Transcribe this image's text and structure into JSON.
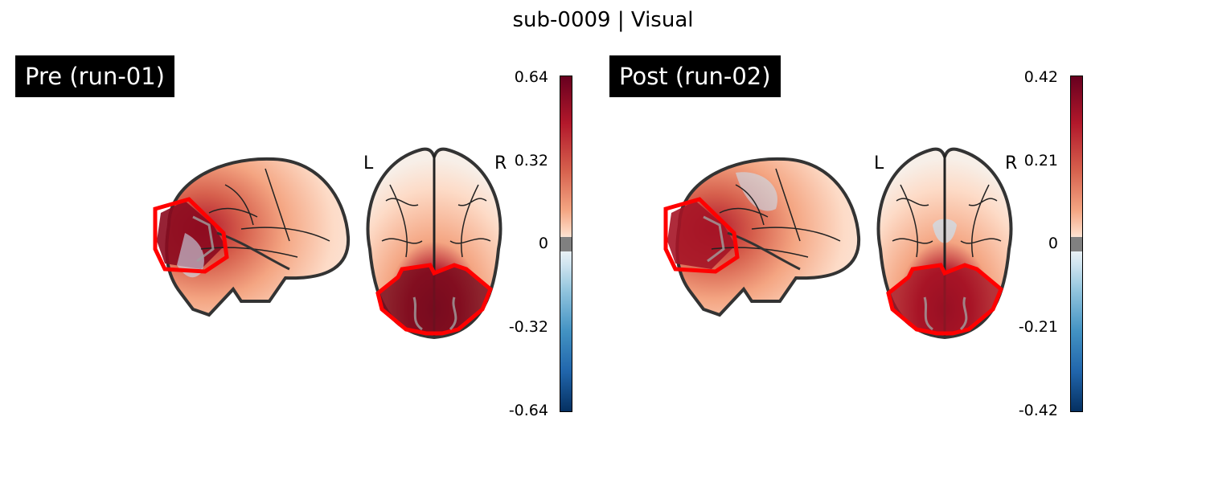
{
  "figure_title": "sub-0009 | Visual",
  "orientation_labels": {
    "left": "L",
    "right": "R"
  },
  "colormap": "RdBu_r",
  "roi_outline_color": "#ff0000",
  "panels": [
    {
      "label": "Pre (run-01)",
      "colorbar_ticks": [
        "0.64",
        "0.32",
        "0",
        "-0.32",
        "-0.64"
      ],
      "colorbar_range": [
        -0.64,
        0.64
      ]
    },
    {
      "label": "Post (run-02)",
      "colorbar_ticks": [
        "0.42",
        "0.21",
        "0",
        "-0.21",
        "-0.42"
      ],
      "colorbar_range": [
        -0.42,
        0.42
      ]
    }
  ]
}
